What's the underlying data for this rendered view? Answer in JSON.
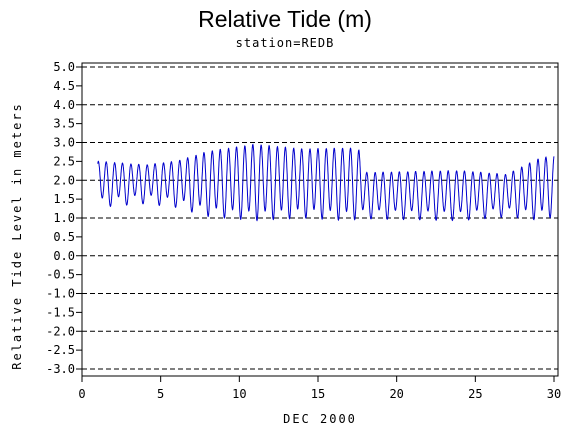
{
  "chart_data": {
    "type": "line",
    "title": "Relative Tide (m)",
    "subtitle": "station=REDB",
    "xlabel": "DEC 2000",
    "ylabel": "Relative Tide Level in meters",
    "xlim": [
      0,
      30
    ],
    "ylim": [
      -3.0,
      5.0
    ],
    "x_ticks": [
      0,
      5,
      10,
      15,
      20,
      25,
      30
    ],
    "y_ticks": [
      "5.0",
      "4.5",
      "4.0",
      "3.5",
      "3.0",
      "2.5",
      "2.0",
      "1.5",
      "1.0",
      "0.5",
      "0.0",
      "-0.5",
      "-1.0",
      "-1.5",
      "-2.0",
      "-2.5",
      "-3.0"
    ],
    "y_tick_values": [
      5.0,
      4.5,
      4.0,
      3.5,
      3.0,
      2.5,
      2.0,
      1.5,
      1.0,
      0.5,
      0.0,
      -0.5,
      -1.0,
      -1.5,
      -2.0,
      -2.5,
      -3.0
    ],
    "gridlines_y": [
      5.0,
      4.0,
      3.0,
      2.0,
      1.0,
      0.0,
      -1.0,
      -2.0,
      -3.0
    ],
    "grid_style": "dashed",
    "series": [
      {
        "color": "#0000cc",
        "period_days": 0.5175,
        "x_start": 1.0,
        "x_end": 30.0,
        "mean_level": [
          [
            1,
            1.95
          ],
          [
            7,
            1.95
          ],
          [
            11,
            2.0
          ],
          [
            17,
            1.95
          ],
          [
            17.6,
            1.95
          ],
          [
            18,
            1.65
          ],
          [
            27,
            1.65
          ],
          [
            30,
            1.9
          ]
        ],
        "amplitude": [
          [
            1,
            0.55
          ],
          [
            4,
            0.45
          ],
          [
            6,
            0.55
          ],
          [
            8,
            0.8
          ],
          [
            11,
            0.95
          ],
          [
            12.5,
            0.9
          ],
          [
            14,
            0.85
          ],
          [
            17,
            0.9
          ],
          [
            17.6,
            0.85
          ],
          [
            18,
            0.55
          ],
          [
            24,
            0.6
          ],
          [
            27,
            0.5
          ],
          [
            29,
            0.75
          ],
          [
            30,
            0.75
          ]
        ]
      }
    ]
  }
}
